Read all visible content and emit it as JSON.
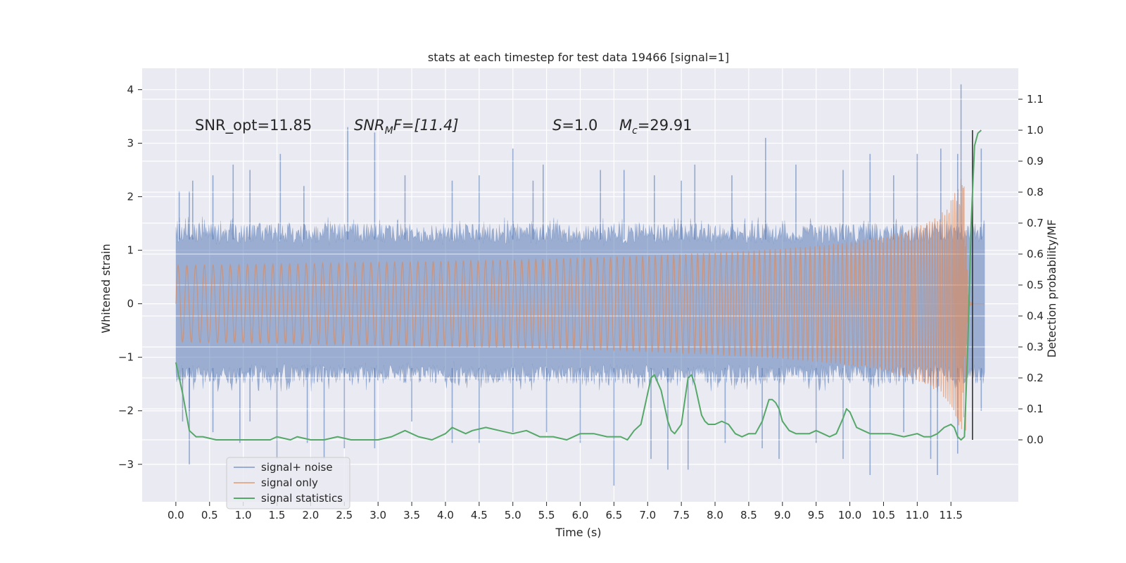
{
  "chart_data": {
    "type": "line",
    "title": "stats at each timestep for test data 19466 [signal=1]",
    "xlabel": "Time (s)",
    "ylabel": "Whitened strain",
    "y2label": "Detection probability/MF",
    "xlim": [
      -0.5,
      12.5
    ],
    "ylim": [
      -3.7,
      4.4
    ],
    "y2lim": [
      -0.2,
      1.2
    ],
    "x_ticks": [
      "0.0",
      "0.5",
      "1.0",
      "1.5",
      "2.0",
      "2.5",
      "3.0",
      "3.5",
      "4.0",
      "4.5",
      "5.0",
      "5.5",
      "6.0",
      "6.5",
      "7.0",
      "7.5",
      "8.0",
      "8.5",
      "9.0",
      "9.5",
      "10.0",
      "10.5",
      "11.0",
      "11.5"
    ],
    "y_ticks": [
      "4",
      "3",
      "2",
      "1",
      "0",
      "−1",
      "−2",
      "−3"
    ],
    "y2_ticks": [
      "1.1",
      "1.0",
      "0.9",
      "0.8",
      "0.7",
      "0.6",
      "0.5",
      "0.4",
      "0.3",
      "0.2",
      "0.1",
      "0.0"
    ],
    "annotations": {
      "snr_opt": "SNR_opt=11.85",
      "snr_mf_italic": "SNR",
      "snr_mf_sub": "M",
      "snr_mf_rest": "F=[11.4]",
      "s_italic": "S",
      "s_rest": "=1.0",
      "mc_italic": "M",
      "mc_sub": "c",
      "mc_rest": "=29.91"
    },
    "legend": [
      "signal+ noise",
      "signal only",
      "signal statistics"
    ],
    "colors": {
      "noise": "#4c72b0",
      "signal": "#dd8452",
      "stat": "#55a868",
      "marker": "#333333",
      "background": "#eaeaf2",
      "grid": "#ffffff"
    },
    "noise_envelope": {
      "x": [
        0.0,
        12.0
      ],
      "upper_typical": 1.5,
      "lower_typical": -1.5,
      "upper_spikes": [
        [
          0.05,
          2.1
        ],
        [
          0.2,
          2.1
        ],
        [
          0.25,
          2.3
        ],
        [
          0.55,
          2.4
        ],
        [
          0.85,
          2.6
        ],
        [
          1.1,
          2.5
        ],
        [
          1.55,
          2.8
        ],
        [
          1.9,
          2.2
        ],
        [
          2.55,
          3.3
        ],
        [
          2.95,
          3.2
        ],
        [
          3.4,
          2.4
        ],
        [
          4.1,
          2.3
        ],
        [
          4.5,
          2.4
        ],
        [
          5.0,
          2.9
        ],
        [
          5.3,
          2.3
        ],
        [
          5.45,
          2.6
        ],
        [
          6.3,
          2.5
        ],
        [
          6.65,
          2.5
        ],
        [
          7.1,
          2.4
        ],
        [
          7.5,
          2.3
        ],
        [
          7.7,
          2.6
        ],
        [
          8.25,
          2.4
        ],
        [
          8.75,
          3.1
        ],
        [
          9.2,
          2.6
        ],
        [
          9.9,
          2.5
        ],
        [
          10.3,
          2.8
        ],
        [
          10.65,
          2.4
        ],
        [
          11.0,
          2.8
        ],
        [
          11.35,
          2.9
        ],
        [
          11.6,
          2.8
        ],
        [
          11.65,
          4.1
        ],
        [
          11.95,
          2.9
        ]
      ],
      "lower_spikes": [
        [
          0.1,
          -2.2
        ],
        [
          0.2,
          -2.0
        ],
        [
          0.2,
          -3.0
        ],
        [
          0.55,
          -2.4
        ],
        [
          0.95,
          -2.6
        ],
        [
          1.1,
          -2.2
        ],
        [
          1.5,
          -2.9
        ],
        [
          1.95,
          -2.6
        ],
        [
          2.2,
          -2.9
        ],
        [
          2.5,
          -2.7
        ],
        [
          2.95,
          -2.7
        ],
        [
          3.5,
          -2.2
        ],
        [
          4.1,
          -2.6
        ],
        [
          4.5,
          -2.6
        ],
        [
          5.0,
          -2.4
        ],
        [
          5.5,
          -2.4
        ],
        [
          6.0,
          -2.6
        ],
        [
          6.5,
          -3.4
        ],
        [
          7.05,
          -2.9
        ],
        [
          7.3,
          -3.1
        ],
        [
          7.6,
          -3.1
        ],
        [
          8.15,
          -2.6
        ],
        [
          8.7,
          -2.7
        ],
        [
          8.95,
          -2.9
        ],
        [
          9.5,
          -2.6
        ],
        [
          9.9,
          -2.9
        ],
        [
          10.3,
          -3.2
        ],
        [
          10.8,
          -2.4
        ],
        [
          11.2,
          -2.9
        ],
        [
          11.3,
          -3.2
        ],
        [
          11.6,
          -2.8
        ],
        [
          11.95,
          -2.0
        ]
      ]
    },
    "signal": {
      "merger_time": 11.72,
      "peak_amplitude": 2.4,
      "end_time": 12.0
    },
    "stat_series": {
      "x": [
        0.0,
        0.05,
        0.1,
        0.2,
        0.3,
        0.4,
        0.6,
        0.8,
        1.0,
        1.2,
        1.4,
        1.5,
        1.7,
        1.8,
        2.0,
        2.2,
        2.4,
        2.6,
        2.8,
        3.0,
        3.2,
        3.4,
        3.6,
        3.8,
        4.0,
        4.1,
        4.2,
        4.3,
        4.4,
        4.6,
        4.8,
        5.0,
        5.2,
        5.3,
        5.4,
        5.6,
        5.8,
        6.0,
        6.2,
        6.4,
        6.6,
        6.7,
        6.8,
        6.9,
        7.0,
        7.05,
        7.1,
        7.2,
        7.3,
        7.35,
        7.4,
        7.5,
        7.6,
        7.65,
        7.7,
        7.8,
        7.85,
        7.9,
        8.0,
        8.1,
        8.2,
        8.3,
        8.4,
        8.5,
        8.6,
        8.7,
        8.8,
        8.85,
        8.9,
        8.95,
        9.0,
        9.1,
        9.2,
        9.3,
        9.4,
        9.5,
        9.6,
        9.7,
        9.8,
        9.9,
        9.95,
        10.0,
        10.1,
        10.2,
        10.3,
        10.4,
        10.6,
        10.8,
        11.0,
        11.1,
        11.2,
        11.3,
        11.4,
        11.5,
        11.55,
        11.6,
        11.65,
        11.7,
        11.75,
        11.8,
        11.85,
        11.9,
        11.95
      ],
      "y": [
        0.25,
        0.2,
        0.15,
        0.03,
        0.01,
        0.01,
        0.0,
        0.0,
        0.0,
        0.0,
        0.0,
        0.01,
        0.0,
        0.01,
        0.0,
        0.0,
        0.01,
        0.0,
        0.0,
        0.0,
        0.01,
        0.03,
        0.01,
        0.0,
        0.02,
        0.04,
        0.03,
        0.02,
        0.03,
        0.04,
        0.03,
        0.02,
        0.03,
        0.02,
        0.01,
        0.01,
        0.0,
        0.02,
        0.02,
        0.01,
        0.01,
        0.0,
        0.03,
        0.05,
        0.15,
        0.2,
        0.21,
        0.16,
        0.06,
        0.03,
        0.02,
        0.05,
        0.2,
        0.21,
        0.18,
        0.08,
        0.06,
        0.05,
        0.05,
        0.06,
        0.05,
        0.02,
        0.01,
        0.02,
        0.02,
        0.06,
        0.13,
        0.13,
        0.12,
        0.1,
        0.06,
        0.03,
        0.02,
        0.02,
        0.02,
        0.03,
        0.02,
        0.01,
        0.02,
        0.07,
        0.1,
        0.09,
        0.04,
        0.03,
        0.02,
        0.02,
        0.02,
        0.01,
        0.02,
        0.01,
        0.01,
        0.02,
        0.04,
        0.05,
        0.04,
        0.01,
        0.0,
        0.01,
        0.3,
        0.7,
        0.95,
        0.99,
        1.0
      ]
    },
    "marker_x": 11.82
  }
}
